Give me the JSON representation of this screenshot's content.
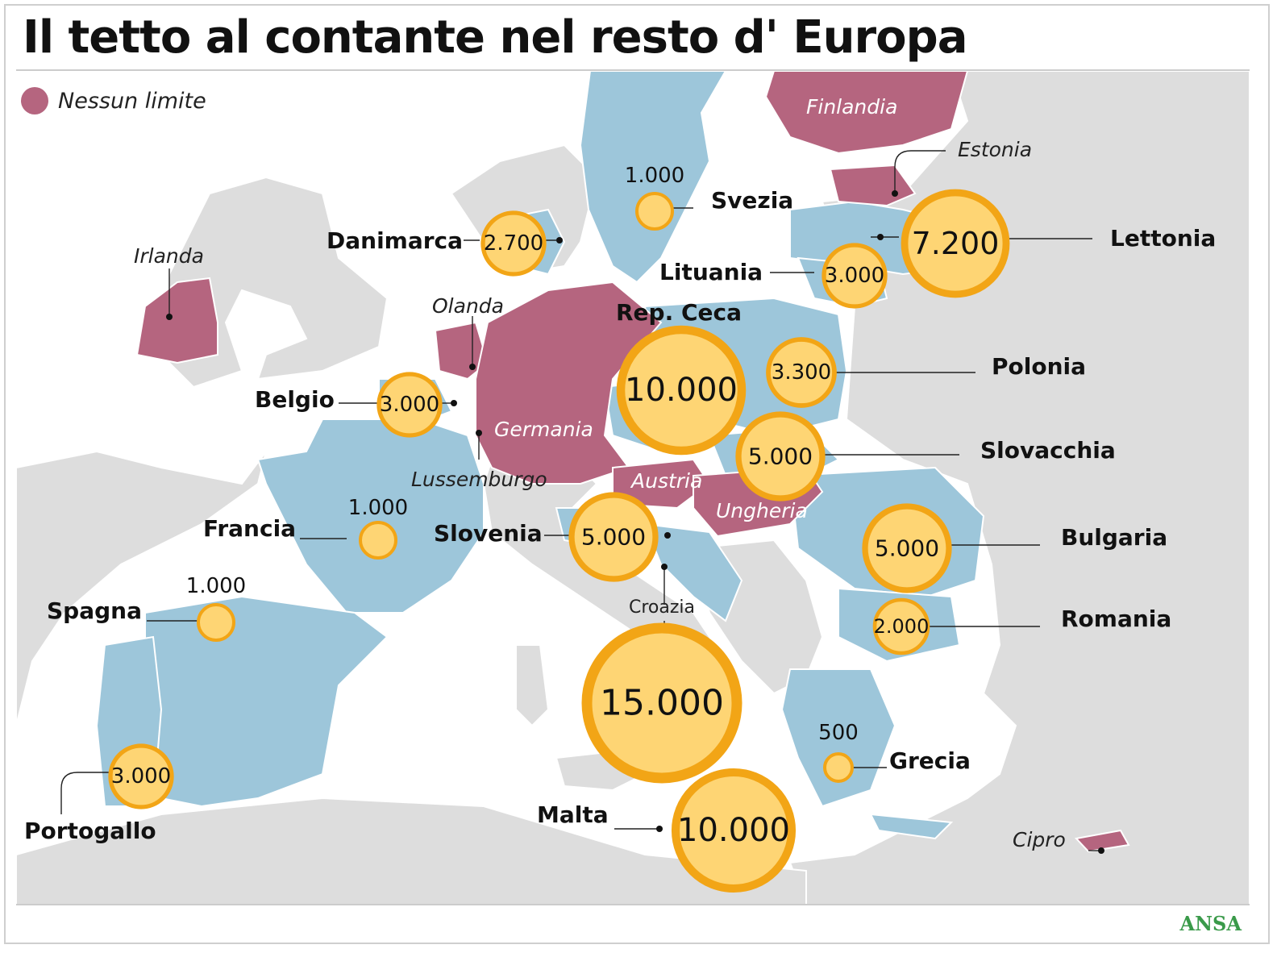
{
  "title": "Il tetto al contante nel resto d' Europa",
  "legend": {
    "label": "Nessun limite",
    "color": "#b5657f"
  },
  "credit": "ANSA",
  "colors": {
    "limit": "#9dc6da",
    "no_limit": "#b5657f",
    "land": "#dddddd",
    "sea": "#ffffff",
    "bubble_fill": "#fed574",
    "bubble_ring": "#f2a516"
  },
  "limits": [
    {
      "country": "Svezia",
      "value": "1.000"
    },
    {
      "country": "Danimarca",
      "value": "2.700"
    },
    {
      "country": "Lettonia",
      "value": "7.200"
    },
    {
      "country": "Lituania",
      "value": "3.000"
    },
    {
      "country": "Rep. Ceca",
      "value": "10.000"
    },
    {
      "country": "Polonia",
      "value": "3.300"
    },
    {
      "country": "Belgio",
      "value": "3.000"
    },
    {
      "country": "Slovacchia",
      "value": "5.000"
    },
    {
      "country": "Francia",
      "value": "1.000"
    },
    {
      "country": "Slovenia",
      "value": "5.000"
    },
    {
      "country": "Bulgaria",
      "value": "5.000"
    },
    {
      "country": "Spagna",
      "value": "1.000"
    },
    {
      "country": "Croazia",
      "value": "15.000"
    },
    {
      "country": "Romania",
      "value": "2.000"
    },
    {
      "country": "Grecia",
      "value": "500"
    },
    {
      "country": "Portogallo",
      "value": "3.000"
    },
    {
      "country": "Malta",
      "value": "10.000"
    }
  ],
  "no_limit_countries": [
    "Finlandia",
    "Estonia",
    "Irlanda",
    "Olanda",
    "Germania",
    "Lussemburgo",
    "Austria",
    "Ungheria",
    "Cipro"
  ]
}
